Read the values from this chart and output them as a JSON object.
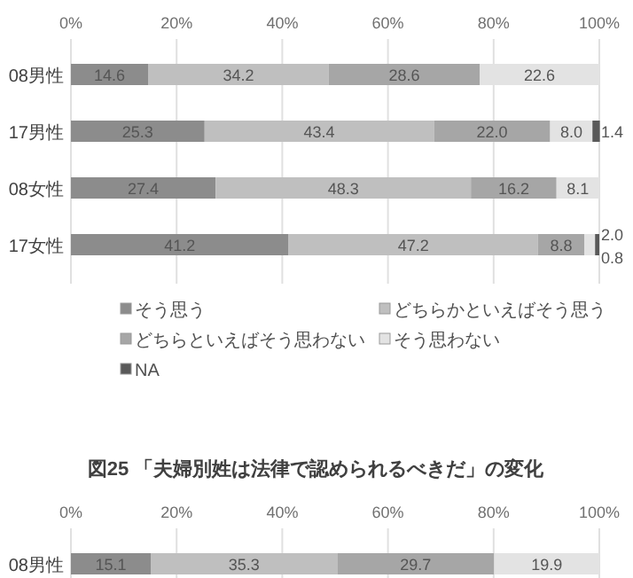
{
  "chart_data": [
    {
      "type": "bar",
      "orientation": "horizontal",
      "stacked": true,
      "grid": "x",
      "legend": "bottom",
      "categories": [
        "08男性",
        "17男性",
        "08女性",
        "17女性"
      ],
      "xlim": [
        0,
        100
      ],
      "xticks": [
        {
          "value": 0,
          "label": "0%"
        },
        {
          "value": 20,
          "label": "20%"
        },
        {
          "value": 40,
          "label": "40%"
        },
        {
          "value": 60,
          "label": "60%"
        },
        {
          "value": 80,
          "label": "80%"
        },
        {
          "value": 100,
          "label": "100%"
        }
      ],
      "series": [
        {
          "name": "そう思う",
          "color": "#8c8c8c",
          "values": [
            14.6,
            25.3,
            27.4,
            41.2
          ],
          "value_labels": [
            "14.6",
            "25.3",
            "27.4",
            "41.2"
          ]
        },
        {
          "name": "どちらかといえばそう思う",
          "color": "#bfbfbf",
          "values": [
            34.2,
            43.4,
            48.3,
            47.2
          ],
          "value_labels": [
            "34.2",
            "43.4",
            "48.3",
            "47.2"
          ]
        },
        {
          "name": "どちらといえばそう思わない",
          "color": "#a6a6a6",
          "values": [
            28.6,
            22.0,
            16.2,
            8.8
          ],
          "value_labels": [
            "28.6",
            "22.0",
            "16.2",
            "8.8"
          ]
        },
        {
          "name": "そう思わない",
          "color": "#e3e3e3",
          "values": [
            22.6,
            8.0,
            8.1,
            2.0
          ],
          "value_labels": [
            "22.6",
            "8.0",
            "8.1",
            "2.0"
          ]
        },
        {
          "name": "NA",
          "color": "#595959",
          "values": [
            null,
            1.4,
            null,
            0.8
          ],
          "value_labels": [
            null,
            "1.4",
            null,
            "0.8"
          ]
        }
      ]
    },
    {
      "type": "bar",
      "orientation": "horizontal",
      "stacked": true,
      "data_labels": true,
      "grid": "x",
      "title": "図25 「夫婦別姓は法律で認められるべきだ」の変化",
      "categories": [
        "08男性"
      ],
      "xlim": [
        0,
        100
      ],
      "xticks": [
        {
          "value": 0,
          "label": "0%"
        },
        {
          "value": 20,
          "label": "20%"
        },
        {
          "value": 40,
          "label": "40%"
        },
        {
          "value": 60,
          "label": "60%"
        },
        {
          "value": 80,
          "label": "80%"
        },
        {
          "value": 100,
          "label": "100%"
        }
      ],
      "series": [
        {
          "color": "#8c8c8c",
          "values": [
            15.1
          ]
        },
        {
          "color": "#bfbfbf",
          "values": [
            35.3
          ]
        },
        {
          "color": "#a6a6a6",
          "values": [
            29.7
          ]
        },
        {
          "color": "#e3e3e3",
          "values": [
            19.9
          ]
        }
      ]
    }
  ]
}
